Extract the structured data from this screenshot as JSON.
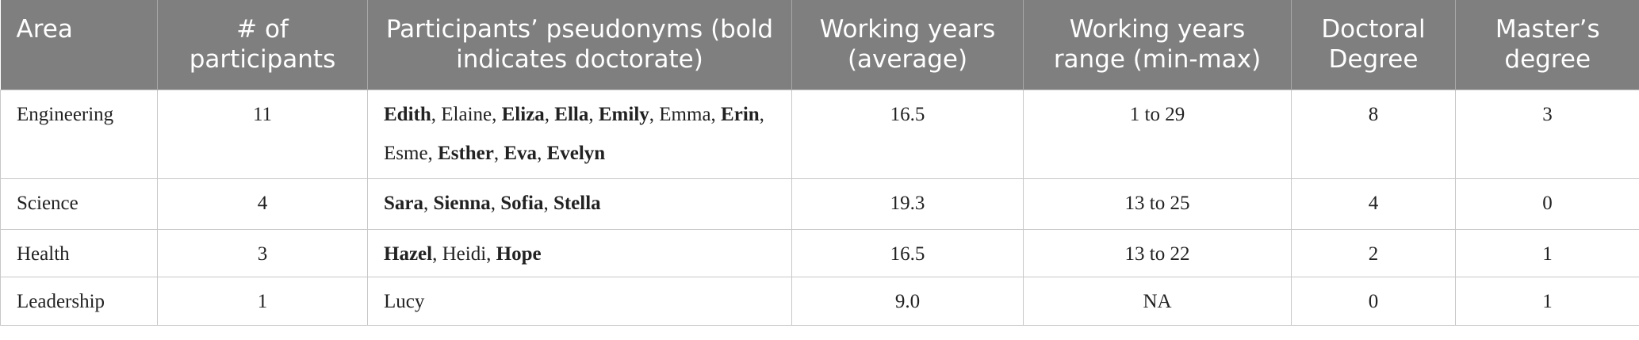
{
  "table": {
    "header": [
      "Area",
      "# of participants",
      "Participants’ pseudonyms (bold indicates doctorate)",
      "Working years (average)",
      "Working years range (min-max)",
      "Doctoral Degree",
      "Master’s degree"
    ],
    "rows": [
      [
        "Engineering",
        "11",
        [
          {
            "text": "Edith",
            "bold": true
          },
          {
            "text": ", Elaine, ",
            "bold": false
          },
          {
            "text": "Eliza",
            "bold": true
          },
          {
            "text": ", ",
            "bold": false
          },
          {
            "text": "Ella",
            "bold": true
          },
          {
            "text": ", ",
            "bold": false
          },
          {
            "text": "Emily",
            "bold": true
          },
          {
            "text": ", Emma, ",
            "bold": false
          },
          {
            "text": "Erin",
            "bold": true
          },
          {
            "text": ", Esme, ",
            "bold": false
          },
          {
            "text": "Esther",
            "bold": true
          },
          {
            "text": ", ",
            "bold": false
          },
          {
            "text": "Eva",
            "bold": true
          },
          {
            "text": ", ",
            "bold": false
          },
          {
            "text": "Evelyn",
            "bold": true
          }
        ],
        "16.5",
        "1 to 29",
        "8",
        "3"
      ],
      [
        "Science",
        "4",
        [
          {
            "text": "Sara",
            "bold": true
          },
          {
            "text": ", ",
            "bold": false
          },
          {
            "text": "Sienna",
            "bold": true
          },
          {
            "text": ", ",
            "bold": false
          },
          {
            "text": "Sofia",
            "bold": true
          },
          {
            "text": ", ",
            "bold": false
          },
          {
            "text": "Stella",
            "bold": true
          }
        ],
        "19.3",
        "13 to 25",
        "4",
        "0"
      ],
      [
        "Health",
        "3",
        [
          {
            "text": "Hazel",
            "bold": true
          },
          {
            "text": ", Heidi, ",
            "bold": false
          },
          {
            "text": "Hope",
            "bold": true
          }
        ],
        "16.5",
        "13 to 22",
        "2",
        "1"
      ],
      [
        "Leadership",
        "1",
        [
          {
            "text": "Lucy",
            "bold": false
          }
        ],
        "9.0",
        "NA",
        "0",
        "1"
      ]
    ]
  }
}
